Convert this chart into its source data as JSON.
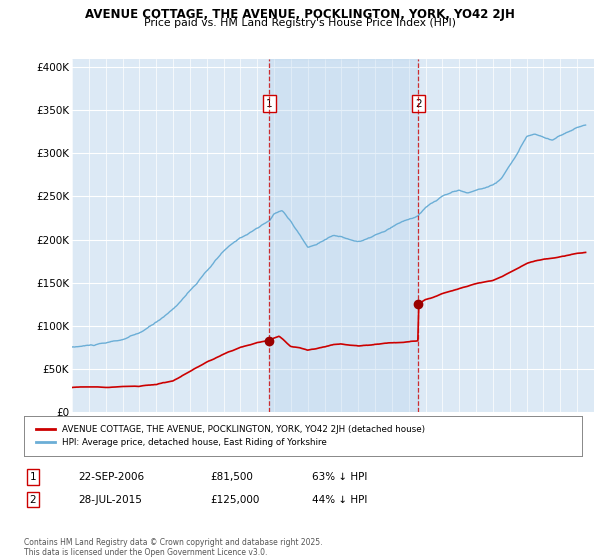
{
  "title": "AVENUE COTTAGE, THE AVENUE, POCKLINGTON, YORK, YO42 2JH",
  "subtitle": "Price paid vs. HM Land Registry's House Price Index (HPI)",
  "hpi_color": "#6baed6",
  "price_color": "#cc0000",
  "marker_color": "#990000",
  "vline_color": "#cc0000",
  "plot_bg": "#dce9f5",
  "shade_color": "#c6d9f0",
  "ylim": [
    0,
    410000
  ],
  "yticks": [
    0,
    50000,
    100000,
    150000,
    200000,
    250000,
    300000,
    350000,
    400000
  ],
  "ytick_labels": [
    "£0",
    "£50K",
    "£100K",
    "£150K",
    "£200K",
    "£250K",
    "£300K",
    "£350K",
    "£400K"
  ],
  "sale1_date": 2006.72,
  "sale1_price": 81500,
  "sale1_label": "1",
  "sale2_date": 2015.56,
  "sale2_price": 125000,
  "sale2_label": "2",
  "legend_line1": "AVENUE COTTAGE, THE AVENUE, POCKLINGTON, YORK, YO42 2JH (detached house)",
  "legend_line2": "HPI: Average price, detached house, East Riding of Yorkshire",
  "table_row1": [
    "1",
    "22-SEP-2006",
    "£81,500",
    "63% ↓ HPI"
  ],
  "table_row2": [
    "2",
    "28-JUL-2015",
    "£125,000",
    "44% ↓ HPI"
  ],
  "footer": "Contains HM Land Registry data © Crown copyright and database right 2025.\nThis data is licensed under the Open Government Licence v3.0.",
  "xmin": 1995,
  "xmax": 2026
}
